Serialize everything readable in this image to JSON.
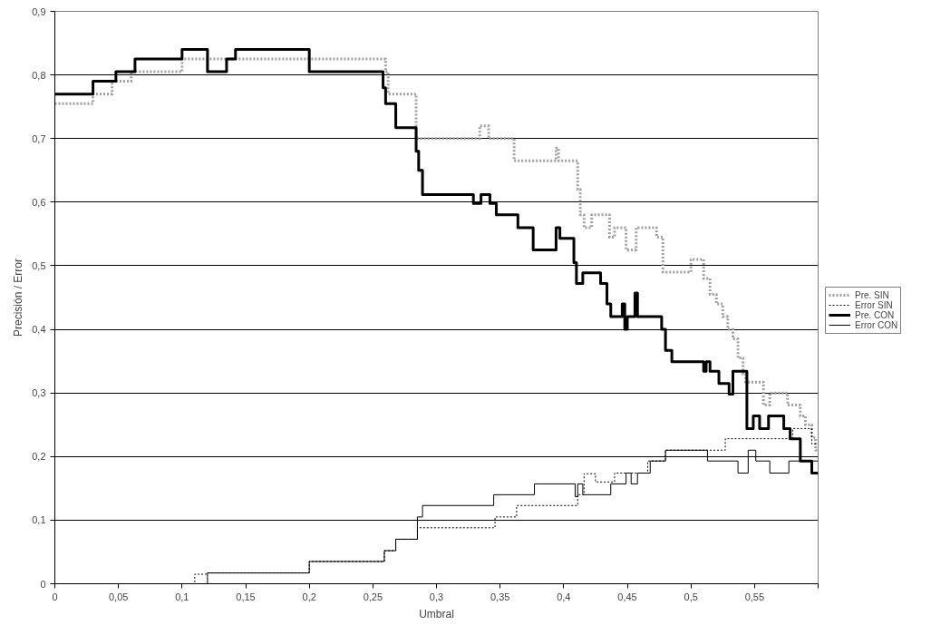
{
  "chart_data": {
    "type": "step",
    "xlabel": "Umbral",
    "ylabel": "Precisión / Error",
    "xlim": [
      0,
      0.6
    ],
    "ylim": [
      0,
      0.9
    ],
    "xticks": [
      {
        "value": 0,
        "label": "0"
      },
      {
        "value": 0.05,
        "label": "0,05"
      },
      {
        "value": 0.1,
        "label": "0,1"
      },
      {
        "value": 0.15,
        "label": "0,15"
      },
      {
        "value": 0.2,
        "label": "0,2"
      },
      {
        "value": 0.25,
        "label": "0,25"
      },
      {
        "value": 0.3,
        "label": "0,3"
      },
      {
        "value": 0.35,
        "label": "0,35"
      },
      {
        "value": 0.4,
        "label": "0,4"
      },
      {
        "value": 0.45,
        "label": "0,45"
      },
      {
        "value": 0.5,
        "label": "0,5"
      },
      {
        "value": 0.55,
        "label": "0,55"
      },
      {
        "value": 0.6,
        "label": null
      }
    ],
    "yticks": [
      {
        "value": 0,
        "label": "0"
      },
      {
        "value": 0.1,
        "label": "0,1"
      },
      {
        "value": 0.2,
        "label": "0,2"
      },
      {
        "value": 0.3,
        "label": "0,3"
      },
      {
        "value": 0.4,
        "label": "0,4"
      },
      {
        "value": 0.5,
        "label": "0,5"
      },
      {
        "value": 0.6,
        "label": "0,6"
      },
      {
        "value": 0.7,
        "label": "0,7"
      },
      {
        "value": 0.8,
        "label": "0,8"
      },
      {
        "value": 0.9,
        "label": "0,9"
      }
    ],
    "grid": "y",
    "legend": "right",
    "series": [
      {
        "name": "Pre. SIN",
        "color": "#a0a0a0",
        "line_style": "dotted",
        "x": [
          0,
          0.03,
          0.045,
          0.06,
          0.1,
          0.26,
          0.262,
          0.284,
          0.334,
          0.341,
          0.361,
          0.394,
          0.396,
          0.411,
          0.413,
          0.416,
          0.422,
          0.436,
          0.44,
          0.449,
          0.457,
          0.473,
          0.478,
          0.5,
          0.51,
          0.515,
          0.52,
          0.525,
          0.529,
          0.533,
          0.537,
          0.541,
          0.543,
          0.557,
          0.562,
          0.576,
          0.586,
          0.59,
          0.595,
          0.598,
          0.6
        ],
        "values": [
          0.755,
          0.77,
          0.79,
          0.805,
          0.825,
          0.805,
          0.77,
          0.7,
          0.72,
          0.7,
          0.665,
          0.685,
          0.665,
          0.62,
          0.58,
          0.56,
          0.58,
          0.545,
          0.56,
          0.525,
          0.56,
          0.545,
          0.49,
          0.51,
          0.48,
          0.455,
          0.44,
          0.42,
          0.4,
          0.385,
          0.355,
          0.33,
          0.317,
          0.281,
          0.3,
          0.281,
          0.264,
          0.25,
          0.23,
          0.21,
          0.21
        ]
      },
      {
        "name": "Error SIN",
        "color": "#000000",
        "line_style": "dotted",
        "x": [
          0,
          0.11,
          0.119,
          0.2,
          0.259,
          0.268,
          0.285,
          0.346,
          0.363,
          0.411,
          0.416,
          0.425,
          0.44,
          0.466,
          0.48,
          0.527,
          0.58,
          0.595,
          0.6
        ],
        "values": [
          0,
          0.015,
          0.017,
          0.035,
          0.052,
          0.07,
          0.088,
          0.105,
          0.123,
          0.14,
          0.173,
          0.16,
          0.174,
          0.193,
          0.21,
          0.228,
          0.244,
          0.22,
          0.22
        ]
      },
      {
        "name": "Pre. CON",
        "color": "#000000",
        "line_style": "solid",
        "x": [
          0,
          0.03,
          0.048,
          0.063,
          0.1,
          0.12,
          0.135,
          0.142,
          0.2,
          0.258,
          0.26,
          0.268,
          0.284,
          0.286,
          0.289,
          0.329,
          0.335,
          0.342,
          0.347,
          0.364,
          0.376,
          0.394,
          0.397,
          0.408,
          0.41,
          0.415,
          0.429,
          0.434,
          0.437,
          0.446,
          0.448,
          0.45,
          0.456,
          0.458,
          0.477,
          0.48,
          0.485,
          0.51,
          0.512,
          0.515,
          0.522,
          0.53,
          0.533,
          0.544,
          0.549,
          0.554,
          0.561,
          0.573,
          0.578,
          0.586,
          0.595,
          0.6
        ],
        "values": [
          0.77,
          0.79,
          0.805,
          0.825,
          0.84,
          0.805,
          0.825,
          0.84,
          0.805,
          0.78,
          0.755,
          0.717,
          0.68,
          0.65,
          0.612,
          0.598,
          0.612,
          0.598,
          0.58,
          0.56,
          0.525,
          0.56,
          0.543,
          0.505,
          0.472,
          0.489,
          0.472,
          0.44,
          0.42,
          0.44,
          0.4,
          0.42,
          0.457,
          0.42,
          0.4,
          0.367,
          0.349,
          0.334,
          0.349,
          0.334,
          0.315,
          0.298,
          0.334,
          0.244,
          0.264,
          0.244,
          0.264,
          0.244,
          0.228,
          0.193,
          0.174,
          0.174
        ]
      },
      {
        "name": "Error CON",
        "color": "#000000",
        "line_style": "solid",
        "x": [
          0,
          0.12,
          0.2,
          0.259,
          0.268,
          0.285,
          0.289,
          0.345,
          0.377,
          0.409,
          0.411,
          0.415,
          0.437,
          0.449,
          0.453,
          0.458,
          0.468,
          0.48,
          0.513,
          0.537,
          0.545,
          0.551,
          0.562,
          0.577,
          0.6
        ],
        "values": [
          0,
          0.017,
          0.035,
          0.052,
          0.07,
          0.105,
          0.123,
          0.14,
          0.157,
          0.137,
          0.157,
          0.14,
          0.157,
          0.174,
          0.157,
          0.174,
          0.193,
          0.21,
          0.193,
          0.174,
          0.21,
          0.193,
          0.174,
          0.193,
          0.193
        ]
      }
    ]
  }
}
